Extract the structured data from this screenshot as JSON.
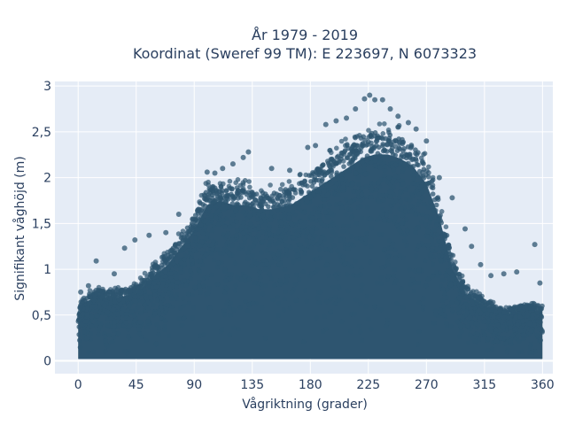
{
  "chart_data": {
    "type": "scatter",
    "title": "År 1979 - 2019",
    "subtitle": "Koordinat (Sweref 99 TM): E 223697, N 6073323",
    "xlabel": "Vågriktning (grader)",
    "ylabel": "Signifikant våghöjd (m)",
    "xlim": [
      -18,
      368
    ],
    "ylim": [
      -0.14,
      3.05
    ],
    "x_ticks": [
      0,
      45,
      90,
      135,
      180,
      225,
      270,
      315,
      360
    ],
    "x_tick_labels": [
      "0",
      "45",
      "90",
      "135",
      "180",
      "225",
      "270",
      "315",
      "360"
    ],
    "y_ticks": [
      0,
      0.5,
      1,
      1.5,
      2,
      2.5,
      3
    ],
    "y_tick_labels": [
      "0",
      "0,5",
      "1",
      "1,5",
      "2",
      "2,5",
      "3"
    ],
    "grid": true,
    "marker_color": "#2e5570",
    "background": "#e5ecf6",
    "upper_envelope": {
      "x": [
        0,
        5,
        15,
        30,
        45,
        55,
        70,
        80,
        90,
        100,
        110,
        120,
        130,
        140,
        150,
        165,
        180,
        190,
        200,
        210,
        220,
        230,
        240,
        250,
        260,
        270,
        280,
        290,
        300,
        315,
        330,
        345,
        360
      ],
      "y": [
        0.55,
        0.7,
        0.75,
        0.75,
        0.8,
        0.95,
        1.15,
        1.35,
        1.55,
        1.85,
        1.9,
        1.85,
        1.85,
        1.8,
        1.8,
        1.85,
        2.0,
        2.1,
        2.2,
        2.3,
        2.4,
        2.45,
        2.45,
        2.4,
        2.3,
        2.1,
        1.7,
        1.1,
        0.8,
        0.65,
        0.55,
        0.6,
        0.6
      ]
    },
    "outliers": [
      {
        "x": 2,
        "y": 0.75
      },
      {
        "x": 8,
        "y": 0.82
      },
      {
        "x": 14,
        "y": 1.09
      },
      {
        "x": 28,
        "y": 0.95
      },
      {
        "x": 36,
        "y": 1.23
      },
      {
        "x": 44,
        "y": 1.32
      },
      {
        "x": 55,
        "y": 1.37
      },
      {
        "x": 68,
        "y": 1.4
      },
      {
        "x": 78,
        "y": 1.6
      },
      {
        "x": 100,
        "y": 2.06
      },
      {
        "x": 106,
        "y": 2.05
      },
      {
        "x": 112,
        "y": 2.1
      },
      {
        "x": 120,
        "y": 2.15
      },
      {
        "x": 128,
        "y": 2.22
      },
      {
        "x": 132,
        "y": 2.28
      },
      {
        "x": 150,
        "y": 2.1
      },
      {
        "x": 164,
        "y": 2.08
      },
      {
        "x": 178,
        "y": 2.33
      },
      {
        "x": 184,
        "y": 2.35
      },
      {
        "x": 192,
        "y": 2.58
      },
      {
        "x": 200,
        "y": 2.62
      },
      {
        "x": 208,
        "y": 2.65
      },
      {
        "x": 215,
        "y": 2.75
      },
      {
        "x": 222,
        "y": 2.86
      },
      {
        "x": 226,
        "y": 2.9
      },
      {
        "x": 230,
        "y": 2.85
      },
      {
        "x": 236,
        "y": 2.85
      },
      {
        "x": 242,
        "y": 2.75
      },
      {
        "x": 248,
        "y": 2.67
      },
      {
        "x": 256,
        "y": 2.6
      },
      {
        "x": 262,
        "y": 2.53
      },
      {
        "x": 270,
        "y": 2.4
      },
      {
        "x": 280,
        "y": 2.0
      },
      {
        "x": 290,
        "y": 1.78
      },
      {
        "x": 300,
        "y": 1.44
      },
      {
        "x": 305,
        "y": 1.25
      },
      {
        "x": 312,
        "y": 1.05
      },
      {
        "x": 320,
        "y": 0.93
      },
      {
        "x": 330,
        "y": 0.95
      },
      {
        "x": 340,
        "y": 0.97
      },
      {
        "x": 354,
        "y": 1.27
      },
      {
        "x": 358,
        "y": 0.85
      }
    ]
  }
}
